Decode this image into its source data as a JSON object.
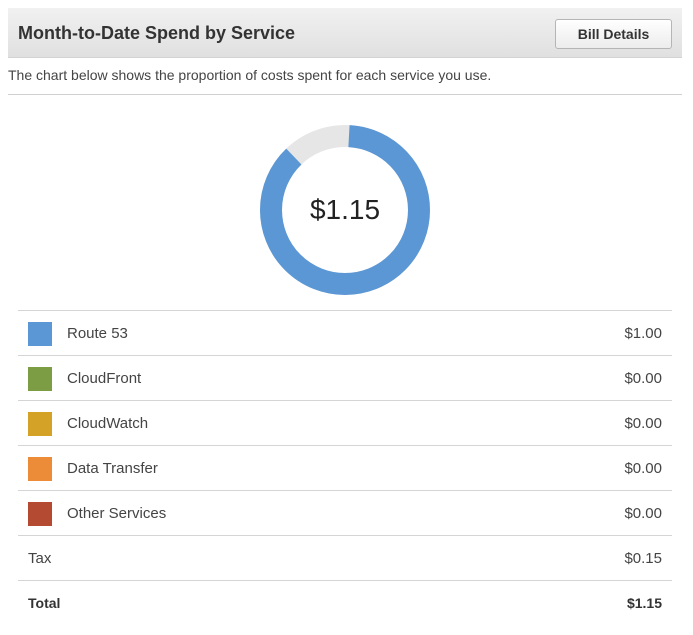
{
  "header": {
    "title": "Month-to-Date Spend by Service",
    "bill_details_label": "Bill Details"
  },
  "description": "The chart below shows the proportion of costs spent for each service you use.",
  "donut": {
    "total_label": "$1.15",
    "track_color": "#e6e6e6"
  },
  "chart_data": {
    "type": "pie",
    "categories": [
      "Route 53",
      "CloudFront",
      "CloudWatch",
      "Data Transfer",
      "Other Services"
    ],
    "values": [
      1.0,
      0.0,
      0.0,
      0.0,
      0.0
    ],
    "colors": [
      "#5b97d4",
      "#7d9d45",
      "#d4a227",
      "#ed8c38",
      "#b44a32"
    ],
    "total": 1.15
  },
  "services": [
    {
      "name": "Route 53",
      "value": "$1.00",
      "color": "#5b97d4"
    },
    {
      "name": "CloudFront",
      "value": "$0.00",
      "color": "#7d9d45"
    },
    {
      "name": "CloudWatch",
      "value": "$0.00",
      "color": "#d4a227"
    },
    {
      "name": "Data Transfer",
      "value": "$0.00",
      "color": "#ed8c38"
    },
    {
      "name": "Other Services",
      "value": "$0.00",
      "color": "#b44a32"
    }
  ],
  "tax": {
    "label": "Tax",
    "value": "$0.15"
  },
  "total": {
    "label": "Total",
    "value": "$1.15"
  }
}
